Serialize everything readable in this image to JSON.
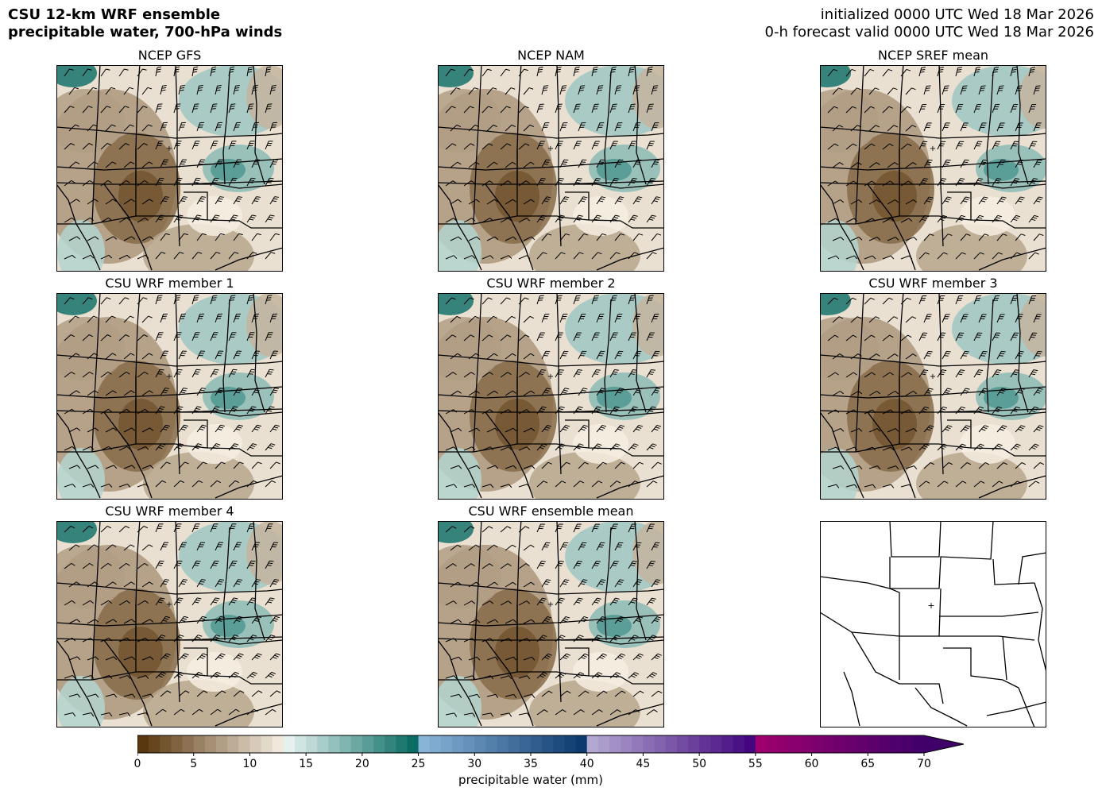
{
  "header": {
    "title_line1": "CSU 12-km WRF ensemble",
    "title_line2": "precipitable water, 700-hPa winds",
    "init_text": "initialized 0000 UTC Wed 18 Mar 2026",
    "valid_text": "0-h forecast valid 0000 UTC Wed 18 Mar 2026"
  },
  "panels": [
    {
      "title": "NCEP GFS",
      "type": "pw-map"
    },
    {
      "title": "NCEP NAM",
      "type": "pw-map"
    },
    {
      "title": "NCEP SREF mean",
      "type": "pw-map"
    },
    {
      "title": "CSU WRF member 1",
      "type": "pw-map"
    },
    {
      "title": "CSU WRF member 2",
      "type": "pw-map"
    },
    {
      "title": "CSU WRF member 3",
      "type": "pw-map"
    },
    {
      "title": "CSU WRF member 4",
      "type": "pw-map"
    },
    {
      "title": "CSU WRF ensemble mean",
      "type": "pw-map"
    },
    {
      "title": "",
      "type": "base-map"
    }
  ],
  "colorbar": {
    "label": "precipitable water (mm)",
    "min": 0,
    "max": 70,
    "extend": "max",
    "ticks": [
      0,
      5,
      10,
      15,
      20,
      25,
      30,
      35,
      40,
      45,
      50,
      55,
      60,
      65,
      70
    ],
    "segments": [
      {
        "from": 0,
        "to": 13,
        "start_color": "#543005",
        "end_color": "#f6efe2"
      },
      {
        "from": 13,
        "to": 25,
        "start_color": "#eef7f5",
        "end_color": "#01665e"
      },
      {
        "from": 25,
        "to": 40,
        "start_color": "#8db8dc",
        "end_color": "#08366b"
      },
      {
        "from": 40,
        "to": 55,
        "start_color": "#b6aed4",
        "end_color": "#3f007d"
      },
      {
        "from": 55,
        "to": 70,
        "start_color": "#a0006e",
        "end_color": "#3f006a"
      }
    ]
  },
  "colors": {
    "dry": "#8c5a16",
    "moist": "#2a8f84",
    "boundary": "#000000"
  }
}
